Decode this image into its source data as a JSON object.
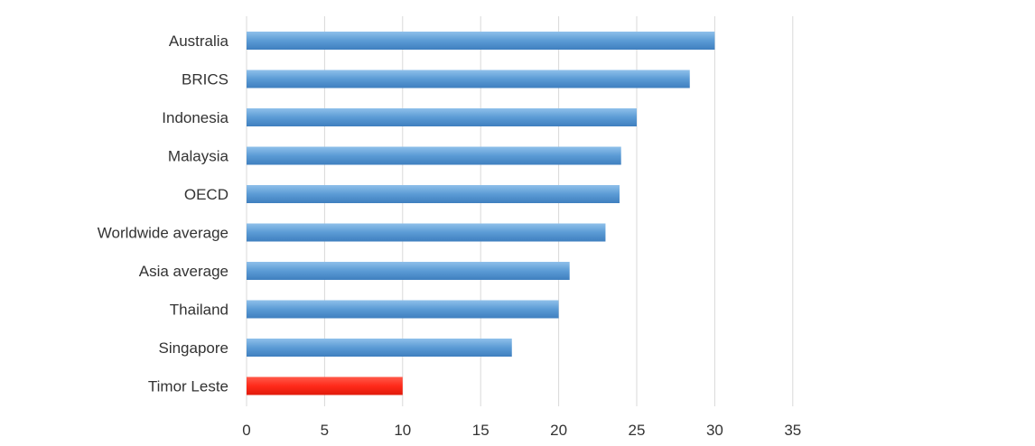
{
  "chart_data": {
    "type": "bar",
    "orientation": "horizontal",
    "categories": [
      "Australia",
      "BRICS",
      "Indonesia",
      "Malaysia",
      "OECD",
      "Worldwide average",
      "Asia average",
      "Thailand",
      "Singapore",
      "Timor Leste"
    ],
    "values": [
      30,
      28.4,
      25,
      24,
      23.9,
      23,
      20.7,
      20,
      17,
      10
    ],
    "bar_colors": [
      "#5b9bd5",
      "#5b9bd5",
      "#5b9bd5",
      "#5b9bd5",
      "#5b9bd5",
      "#5b9bd5",
      "#5b9bd5",
      "#5b9bd5",
      "#5b9bd5",
      "#ff2a1a"
    ],
    "xlim": [
      0,
      35
    ],
    "xticks": [
      0,
      5,
      10,
      15,
      20,
      25,
      30,
      35
    ],
    "grid": true,
    "legend": "none"
  }
}
